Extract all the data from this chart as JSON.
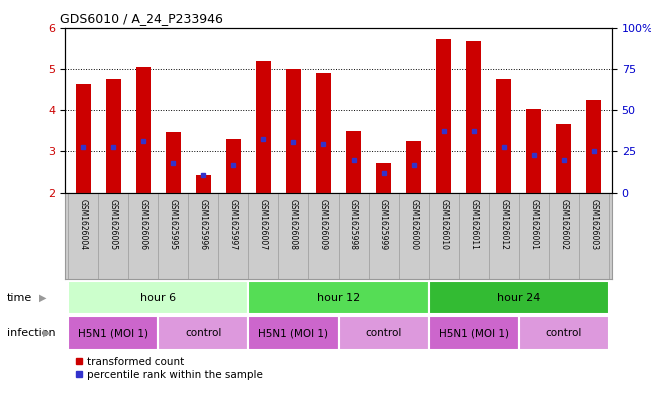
{
  "title": "GDS6010 / A_24_P233946",
  "samples": [
    "GSM1626004",
    "GSM1626005",
    "GSM1626006",
    "GSM1625995",
    "GSM1625996",
    "GSM1625997",
    "GSM1626007",
    "GSM1626008",
    "GSM1626009",
    "GSM1625998",
    "GSM1625999",
    "GSM1626000",
    "GSM1626010",
    "GSM1626011",
    "GSM1626012",
    "GSM1626001",
    "GSM1626002",
    "GSM1626003"
  ],
  "bar_values": [
    4.62,
    4.75,
    5.05,
    3.47,
    2.42,
    3.3,
    5.2,
    5.0,
    4.9,
    3.5,
    2.72,
    3.25,
    5.72,
    5.67,
    4.75,
    4.02,
    3.65,
    4.25
  ],
  "blue_marker_values": [
    3.1,
    3.1,
    3.25,
    2.72,
    2.42,
    2.68,
    3.3,
    3.22,
    3.18,
    2.78,
    2.48,
    2.68,
    3.48,
    3.48,
    3.1,
    2.9,
    2.78,
    3.0
  ],
  "ylim": [
    2,
    6
  ],
  "yticks": [
    2,
    3,
    4,
    5,
    6
  ],
  "right_ytick_positions": [
    2.0,
    3.0,
    4.0,
    5.0,
    6.0
  ],
  "right_ytick_labels": [
    "0",
    "25",
    "50",
    "75",
    "100%"
  ],
  "bar_color": "#cc0000",
  "blue_color": "#3333cc",
  "bar_width": 0.5,
  "time_groups": [
    {
      "label": "hour 6",
      "start": 0,
      "end": 5,
      "color": "#ccffcc"
    },
    {
      "label": "hour 12",
      "start": 6,
      "end": 11,
      "color": "#55dd55"
    },
    {
      "label": "hour 24",
      "start": 12,
      "end": 17,
      "color": "#33bb33"
    }
  ],
  "infection_groups": [
    {
      "label": "H5N1 (MOI 1)",
      "start": 0,
      "end": 2,
      "color": "#cc66cc"
    },
    {
      "label": "control",
      "start": 3,
      "end": 5,
      "color": "#dd99dd"
    },
    {
      "label": "H5N1 (MOI 1)",
      "start": 6,
      "end": 8,
      "color": "#cc66cc"
    },
    {
      "label": "control",
      "start": 9,
      "end": 11,
      "color": "#dd99dd"
    },
    {
      "label": "H5N1 (MOI 1)",
      "start": 12,
      "end": 14,
      "color": "#cc66cc"
    },
    {
      "label": "control",
      "start": 15,
      "end": 17,
      "color": "#dd99dd"
    }
  ],
  "bar_color_left_ytick": "#cc0000",
  "right_ytick_color": "#0000cc",
  "bg_color": "#ffffff",
  "label_area_color": "#cccccc",
  "label_area_border": "#999999"
}
